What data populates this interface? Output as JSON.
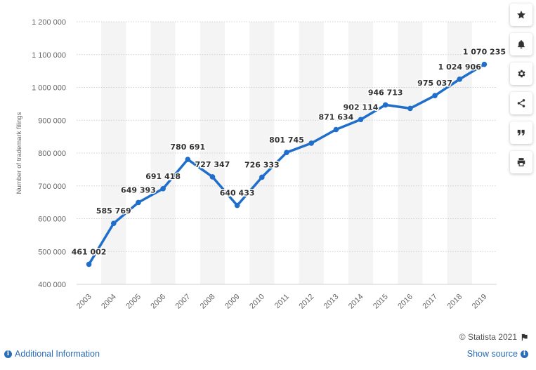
{
  "chart_data": {
    "type": "line",
    "title": "",
    "xlabel": "",
    "ylabel": "Number of trademark filings",
    "categories": [
      "2003",
      "2004",
      "2005",
      "2006",
      "2007",
      "2008",
      "2009",
      "2010",
      "2011",
      "2012",
      "2013",
      "2014",
      "2015",
      "2016",
      "2017",
      "2018",
      "2019"
    ],
    "values": [
      461002,
      585769,
      649393,
      691418,
      780691,
      727347,
      640433,
      726333,
      801745,
      830000,
      871634,
      902114,
      946713,
      936000,
      975037,
      1024906,
      1070235
    ],
    "data_labels": [
      "461 002",
      "585 769",
      "649 393",
      "691 418",
      "780 691",
      "727 347",
      "640 433",
      "726 333",
      "801 745",
      "",
      "871 634",
      "902 114",
      "946 713",
      "",
      "975 037",
      "1 024 906",
      "1 070 235"
    ],
    "yticks": [
      400000,
      500000,
      600000,
      700000,
      800000,
      900000,
      1000000,
      1100000,
      1200000
    ],
    "ytick_labels": [
      "400 000",
      "500 000",
      "600 000",
      "700 000",
      "800 000",
      "900 000",
      "1 000 000",
      "1 100 000",
      "1 200 000"
    ],
    "ylim": [
      400000,
      1200000
    ],
    "grid": true,
    "line_color": "#1f6ecb",
    "band_color": "#f4f4f4"
  },
  "sidebar": {
    "buttons": [
      {
        "name": "favorite-button",
        "icon": "star-icon"
      },
      {
        "name": "notification-button",
        "icon": "bell-icon"
      },
      {
        "name": "settings-button",
        "icon": "gear-icon"
      },
      {
        "name": "share-button",
        "icon": "share-icon"
      },
      {
        "name": "cite-button",
        "icon": "quote-icon"
      },
      {
        "name": "print-button",
        "icon": "print-icon"
      }
    ]
  },
  "footer": {
    "credit": "© Statista 2021",
    "additional_info": "Additional Information",
    "show_source": "Show source"
  }
}
